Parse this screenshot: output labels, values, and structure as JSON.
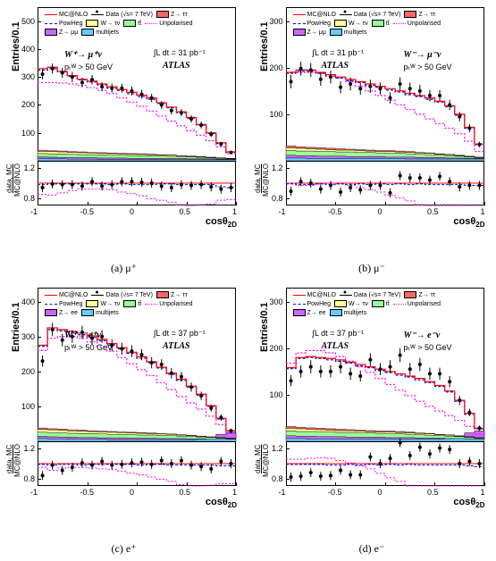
{
  "global": {
    "ylabel_main": "Entries/0.1",
    "ylabel_ratio_top": "data, MC",
    "ylabel_ratio_bot": "MC@NLO",
    "xlabel": "cosθ",
    "xlabel_sub": "2D",
    "atlas": "ATLAS",
    "legend": {
      "mcnlo": "MC@NLO",
      "powheg": "PowHeg",
      "unpol": "Unpolarised",
      "data": "Data (√s= 7 TeV)",
      "wtv": "W→ τν",
      "ztt": "Z→ ττ",
      "tt": "tt̄",
      "multijets": "multijets"
    },
    "colors": {
      "mcnlo": "#ff0000",
      "powheg": "#0000ff",
      "unpol": "#ff00ff",
      "data": "#000000",
      "wtv_fill": "#ffff99",
      "ztt_fill": "#ff6666",
      "tt_fill": "#99ff99",
      "multijets_fill": "#66ccff",
      "zll_fill": "#cc66ff",
      "bg": "#ffffff"
    },
    "xlim": [
      -1,
      1
    ],
    "xticks": [
      "-1",
      "-0.5",
      "0",
      "0.5",
      "1"
    ],
    "xtick_vals": [
      -1,
      -0.5,
      0,
      0.5,
      1
    ],
    "ratio_ylim": [
      0.7,
      1.3
    ],
    "ratio_yticks": [
      "0.8",
      "1.2"
    ],
    "ratio_ytick_vals": [
      0.8,
      1.2
    ],
    "ratio_ref": 1.0
  },
  "panels": [
    {
      "id": "a",
      "caption": "(a) μ⁺",
      "proc": "W⁺→ μ⁺ν",
      "lumi": "∫L dt = 31 pb⁻¹",
      "pt": "pₜᵂ > 50 GeV",
      "zll_label": "Z→ μμ",
      "ylim": [
        0,
        550
      ],
      "yticks": [
        "100",
        "200",
        "300",
        "400",
        "500"
      ],
      "ytick_vals": [
        100,
        200,
        300,
        400,
        500
      ],
      "bins": [
        -1,
        -0.9,
        -0.8,
        -0.7,
        -0.6,
        -0.5,
        -0.4,
        -0.3,
        -0.2,
        -0.1,
        0,
        0.1,
        0.2,
        0.3,
        0.4,
        0.5,
        0.6,
        0.7,
        0.8,
        0.9,
        1
      ],
      "data": [
        310,
        330,
        315,
        300,
        280,
        290,
        265,
        260,
        260,
        250,
        238,
        225,
        200,
        180,
        172,
        150,
        128,
        95,
        60,
        30
      ],
      "data_err": [
        18,
        18,
        18,
        18,
        17,
        17,
        16,
        16,
        16,
        16,
        16,
        15,
        14,
        14,
        13,
        13,
        12,
        10,
        8,
        6
      ],
      "mcnlo": [
        330,
        335,
        320,
        305,
        292,
        285,
        275,
        265,
        255,
        245,
        235,
        225,
        208,
        192,
        175,
        155,
        130,
        100,
        65,
        32
      ],
      "powheg": [
        325,
        330,
        318,
        302,
        290,
        282,
        272,
        260,
        252,
        240,
        230,
        220,
        205,
        190,
        172,
        152,
        128,
        98,
        62,
        30
      ],
      "unpol": [
        280,
        280,
        278,
        275,
        270,
        262,
        252,
        240,
        225,
        210,
        195,
        178,
        160,
        142,
        125,
        108,
        92,
        72,
        50,
        25
      ],
      "bg_multi": [
        8,
        7,
        7,
        6,
        6,
        6,
        5,
        5,
        5,
        5,
        5,
        5,
        4,
        4,
        4,
        4,
        4,
        4,
        4,
        4
      ],
      "bg_zll": [
        14,
        13,
        12,
        12,
        11,
        11,
        10,
        10,
        10,
        9,
        9,
        9,
        8,
        8,
        8,
        7,
        7,
        7,
        6,
        6
      ],
      "bg_tt": [
        26,
        25,
        24,
        23,
        22,
        22,
        21,
        20,
        20,
        19,
        18,
        18,
        17,
        16,
        15,
        14,
        12,
        11,
        9,
        7
      ],
      "bg_wtv": [
        34,
        33,
        32,
        30,
        29,
        28,
        27,
        26,
        25,
        24,
        23,
        22,
        21,
        20,
        18,
        16,
        14,
        12,
        10,
        8
      ],
      "bg_ztt": [
        38,
        36,
        35,
        33,
        32,
        30,
        29,
        28,
        27,
        26,
        25,
        24,
        22,
        21,
        19,
        17,
        15,
        13,
        11,
        9
      ],
      "ratio_data": [
        0.94,
        0.99,
        0.98,
        0.98,
        0.96,
        1.02,
        0.96,
        0.98,
        1.02,
        1.02,
        1.01,
        1.0,
        0.96,
        0.94,
        0.98,
        0.97,
        0.98,
        0.95,
        0.92,
        0.94
      ],
      "ratio_pow": [
        0.98,
        0.99,
        0.99,
        0.99,
        0.99,
        0.99,
        0.99,
        0.98,
        0.99,
        0.98,
        0.98,
        0.98,
        0.99,
        0.99,
        0.98,
        0.98,
        0.98,
        0.98,
        0.95,
        0.94
      ],
      "ratio_unp": [
        0.85,
        0.84,
        0.87,
        0.9,
        0.92,
        0.92,
        0.92,
        0.91,
        0.88,
        0.86,
        0.83,
        0.79,
        0.77,
        0.74,
        0.71,
        0.7,
        0.71,
        0.72,
        0.77,
        0.78
      ]
    },
    {
      "id": "b",
      "caption": "(b) μ⁻",
      "proc": "W⁻→ μ⁻ν",
      "lumi": "∫L dt = 31 pb⁻¹",
      "pt": "pₜᵂ > 50 GeV",
      "zll_label": "Z→ μμ",
      "ylim": [
        0,
        330
      ],
      "yticks": [
        "100",
        "200",
        "300"
      ],
      "ytick_vals": [
        100,
        200,
        300
      ],
      "bins": [
        -1,
        -0.9,
        -0.8,
        -0.7,
        -0.6,
        -0.5,
        -0.4,
        -0.3,
        -0.2,
        -0.1,
        0,
        0.1,
        0.2,
        0.3,
        0.4,
        0.5,
        0.6,
        0.7,
        0.8,
        0.9,
        1
      ],
      "data": [
        170,
        198,
        195,
        175,
        180,
        158,
        165,
        155,
        160,
        155,
        135,
        165,
        155,
        150,
        140,
        140,
        120,
        95,
        70,
        35
      ],
      "data_err": [
        14,
        15,
        15,
        14,
        14,
        13,
        14,
        13,
        14,
        13,
        12,
        14,
        13,
        13,
        12,
        12,
        11,
        10,
        9,
        6
      ],
      "mcnlo": [
        190,
        195,
        195,
        190,
        185,
        180,
        175,
        170,
        165,
        160,
        155,
        150,
        145,
        140,
        135,
        128,
        118,
        100,
        72,
        36
      ],
      "powheg": [
        188,
        192,
        192,
        188,
        182,
        178,
        172,
        168,
        162,
        158,
        152,
        148,
        142,
        138,
        132,
        126,
        116,
        98,
        70,
        35
      ],
      "unpol": [
        190,
        190,
        190,
        188,
        185,
        178,
        170,
        160,
        150,
        140,
        130,
        120,
        110,
        100,
        90,
        80,
        70,
        58,
        42,
        20
      ],
      "bg_multi": [
        6,
        6,
        5,
        5,
        5,
        5,
        5,
        5,
        5,
        5,
        5,
        5,
        4,
        4,
        4,
        4,
        4,
        4,
        4,
        4
      ],
      "bg_zll": [
        12,
        11,
        11,
        10,
        10,
        10,
        9,
        9,
        9,
        9,
        8,
        8,
        8,
        7,
        7,
        7,
        6,
        6,
        5,
        5
      ],
      "bg_tt": [
        22,
        21,
        21,
        20,
        20,
        19,
        19,
        18,
        18,
        17,
        16,
        16,
        15,
        14,
        13,
        12,
        11,
        10,
        8,
        6
      ],
      "bg_wtv": [
        28,
        27,
        26,
        25,
        24,
        23,
        23,
        22,
        21,
        20,
        20,
        19,
        18,
        17,
        16,
        14,
        13,
        11,
        9,
        7
      ],
      "bg_ztt": [
        32,
        30,
        29,
        28,
        27,
        26,
        25,
        24,
        23,
        22,
        22,
        21,
        20,
        18,
        17,
        15,
        14,
        12,
        10,
        8
      ],
      "ratio_data": [
        0.89,
        1.02,
        1.0,
        0.92,
        0.97,
        0.88,
        0.94,
        0.91,
        0.97,
        0.97,
        0.87,
        1.1,
        1.07,
        1.07,
        1.04,
        1.09,
        1.02,
        0.95,
        0.97,
        0.97
      ],
      "ratio_pow": [
        0.99,
        0.98,
        0.98,
        0.99,
        0.98,
        0.99,
        0.98,
        0.99,
        0.98,
        0.99,
        0.98,
        0.99,
        0.98,
        0.99,
        0.98,
        0.98,
        0.98,
        0.98,
        0.97,
        0.97
      ],
      "ratio_unp": [
        1.0,
        0.97,
        0.97,
        0.99,
        1.0,
        0.99,
        0.97,
        0.94,
        0.91,
        0.88,
        0.84,
        0.8,
        0.76,
        0.71,
        0.67,
        0.63,
        0.59,
        0.58,
        0.58,
        0.56
      ]
    },
    {
      "id": "c",
      "caption": "(c) e⁺",
      "proc": "W⁺→ e⁺ν",
      "lumi": "∫L dt = 37 pb⁻¹",
      "pt": "pₜᵂ > 50 GeV",
      "zll_label": "Z→ ee",
      "ylim": [
        0,
        440
      ],
      "yticks": [
        "100",
        "200",
        "300",
        "400"
      ],
      "ytick_vals": [
        100,
        200,
        300,
        400
      ],
      "bins": [
        -1,
        -0.9,
        -0.8,
        -0.7,
        -0.6,
        -0.5,
        -0.4,
        -0.3,
        -0.2,
        -0.1,
        0,
        0.1,
        0.2,
        0.3,
        0.4,
        0.5,
        0.6,
        0.7,
        0.8,
        0.9,
        1
      ],
      "data": [
        230,
        320,
        290,
        300,
        312,
        295,
        300,
        275,
        265,
        258,
        248,
        225,
        220,
        195,
        185,
        155,
        130,
        95,
        68,
        30
      ],
      "data_err": [
        16,
        19,
        18,
        18,
        19,
        18,
        18,
        17,
        17,
        17,
        16,
        16,
        15,
        15,
        14,
        13,
        12,
        10,
        9,
        6
      ],
      "mcnlo": [
        275,
        325,
        320,
        315,
        310,
        302,
        292,
        280,
        268,
        255,
        242,
        228,
        212,
        195,
        178,
        158,
        135,
        102,
        66,
        30
      ],
      "powheg": [
        272,
        320,
        316,
        312,
        305,
        298,
        288,
        276,
        265,
        252,
        238,
        225,
        210,
        192,
        175,
        155,
        132,
        100,
        64,
        29
      ],
      "unpol": [
        260,
        295,
        300,
        300,
        295,
        285,
        272,
        258,
        240,
        222,
        205,
        188,
        168,
        148,
        128,
        110,
        92,
        72,
        48,
        22
      ],
      "bg_multi": [
        8,
        7,
        7,
        6,
        6,
        6,
        6,
        5,
        5,
        5,
        5,
        5,
        5,
        5,
        5,
        5,
        6,
        10,
        20,
        25
      ],
      "bg_zll": [
        14,
        13,
        12,
        12,
        11,
        11,
        10,
        10,
        10,
        9,
        9,
        9,
        8,
        8,
        8,
        7,
        7,
        7,
        6,
        6
      ],
      "bg_tt": [
        26,
        25,
        24,
        23,
        22,
        22,
        21,
        20,
        20,
        19,
        18,
        18,
        17,
        16,
        15,
        14,
        12,
        11,
        9,
        7
      ],
      "bg_wtv": [
        34,
        33,
        32,
        30,
        29,
        28,
        27,
        26,
        25,
        24,
        23,
        22,
        21,
        20,
        18,
        16,
        14,
        12,
        10,
        8
      ],
      "bg_ztt": [
        38,
        36,
        35,
        33,
        32,
        30,
        29,
        28,
        27,
        26,
        25,
        24,
        22,
        21,
        19,
        17,
        15,
        13,
        11,
        9
      ],
      "ratio_data": [
        0.84,
        0.98,
        0.91,
        0.95,
        1.01,
        0.98,
        1.03,
        0.98,
        0.99,
        1.01,
        1.02,
        0.99,
        1.04,
        1.0,
        1.04,
        0.98,
        0.96,
        0.93,
        1.03,
        1.0
      ],
      "ratio_pow": [
        0.99,
        0.98,
        0.99,
        0.99,
        0.98,
        0.99,
        0.99,
        0.99,
        0.99,
        0.99,
        0.98,
        0.99,
        0.99,
        0.98,
        0.98,
        0.98,
        0.98,
        0.98,
        0.97,
        0.97
      ],
      "ratio_unp": [
        0.95,
        0.91,
        0.94,
        0.95,
        0.95,
        0.94,
        0.93,
        0.92,
        0.9,
        0.87,
        0.85,
        0.82,
        0.79,
        0.76,
        0.72,
        0.7,
        0.68,
        0.71,
        0.73,
        0.73
      ]
    },
    {
      "id": "d",
      "caption": "(d) e⁻",
      "proc": "W⁻→ e⁻ν",
      "lumi": "∫L dt = 37 pb⁻¹",
      "pt": "pₜᵂ > 50 GeV",
      "zll_label": "Z→ ee",
      "ylim": [
        0,
        330
      ],
      "yticks": [
        "100",
        "200",
        "300"
      ],
      "ytick_vals": [
        100,
        200,
        300
      ],
      "bins": [
        -1,
        -0.9,
        -0.8,
        -0.7,
        -0.6,
        -0.5,
        -0.4,
        -0.3,
        -0.2,
        -0.1,
        0,
        0.1,
        0.2,
        0.3,
        0.4,
        0.5,
        0.6,
        0.7,
        0.8,
        0.9,
        1
      ],
      "data": [
        130,
        150,
        160,
        150,
        150,
        160,
        145,
        140,
        175,
        155,
        160,
        185,
        155,
        165,
        145,
        145,
        128,
        88,
        62,
        28
      ],
      "data_err": [
        12,
        13,
        14,
        13,
        13,
        14,
        13,
        12,
        14,
        13,
        14,
        15,
        13,
        14,
        13,
        13,
        12,
        10,
        8,
        6
      ],
      "mcnlo": [
        158,
        180,
        182,
        180,
        178,
        175,
        170,
        165,
        160,
        155,
        150,
        145,
        140,
        135,
        128,
        120,
        108,
        88,
        60,
        28
      ],
      "powheg": [
        156,
        178,
        180,
        178,
        175,
        172,
        168,
        162,
        158,
        152,
        148,
        142,
        138,
        132,
        126,
        118,
        106,
        86,
        58,
        27
      ],
      "unpol": [
        168,
        190,
        195,
        195,
        190,
        182,
        172,
        160,
        148,
        135,
        122,
        110,
        98,
        86,
        75,
        65,
        55,
        45,
        32,
        15
      ],
      "bg_multi": [
        6,
        6,
        5,
        5,
        5,
        5,
        5,
        5,
        5,
        5,
        5,
        5,
        5,
        5,
        5,
        5,
        6,
        10,
        18,
        22
      ],
      "bg_zll": [
        12,
        11,
        11,
        10,
        10,
        10,
        9,
        9,
        9,
        9,
        8,
        8,
        8,
        7,
        7,
        7,
        6,
        6,
        5,
        5
      ],
      "bg_tt": [
        22,
        21,
        21,
        20,
        20,
        19,
        19,
        18,
        18,
        17,
        16,
        16,
        15,
        14,
        13,
        12,
        11,
        10,
        8,
        6
      ],
      "bg_wtv": [
        28,
        27,
        26,
        25,
        24,
        23,
        23,
        22,
        21,
        20,
        20,
        19,
        18,
        17,
        16,
        14,
        13,
        11,
        9,
        7
      ],
      "bg_ztt": [
        32,
        30,
        29,
        28,
        27,
        26,
        25,
        24,
        23,
        22,
        22,
        21,
        20,
        18,
        17,
        15,
        14,
        12,
        10,
        8
      ],
      "ratio_data": [
        0.82,
        0.83,
        0.88,
        0.83,
        0.84,
        0.91,
        0.85,
        0.85,
        1.09,
        1.0,
        1.07,
        1.28,
        1.11,
        1.22,
        1.13,
        1.21,
        1.19,
        1.0,
        1.03,
        1.0
      ],
      "ratio_pow": [
        0.99,
        0.99,
        0.99,
        0.99,
        0.98,
        0.98,
        0.99,
        0.98,
        0.99,
        0.98,
        0.99,
        0.98,
        0.99,
        0.98,
        0.98,
        0.98,
        0.98,
        0.98,
        0.97,
        0.96
      ],
      "ratio_unp": [
        1.06,
        1.06,
        1.07,
        1.08,
        1.07,
        1.04,
        1.01,
        0.97,
        0.93,
        0.87,
        0.81,
        0.76,
        0.7,
        0.64,
        0.59,
        0.54,
        0.51,
        0.51,
        0.53,
        0.54
      ]
    }
  ]
}
